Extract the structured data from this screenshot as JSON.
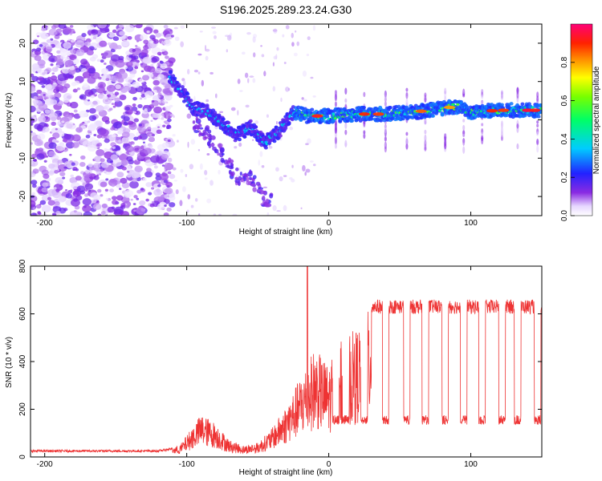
{
  "title": "S196.2025.289.23.24.G30",
  "chart_data": [
    {
      "type": "heatmap",
      "xlabel": "Height of straight line (km)",
      "ylabel": "Frequency (Hz)",
      "xlim": [
        -210,
        150
      ],
      "ylim": [
        -25,
        25
      ],
      "xticks": [
        -200,
        -100,
        0,
        100
      ],
      "yticks": [
        -20,
        -10,
        0,
        10,
        20
      ],
      "colorbar": {
        "label": "Normalized spectral amplitude",
        "range": [
          0,
          1
        ],
        "ticks": [
          "0.0",
          "0.2",
          "0.4",
          "0.6",
          "0.8"
        ]
      },
      "ridge": {
        "description_points_x": [
          -105,
          -95,
          -85,
          -75,
          -65,
          -55,
          -45,
          -35,
          -25,
          -15,
          0,
          20,
          40,
          60,
          80,
          90,
          100,
          120,
          150
        ],
        "description_points_f": [
          8,
          3,
          2,
          -1,
          -4,
          -2,
          -6,
          -3,
          2,
          1,
          1,
          1.5,
          1.5,
          2,
          3,
          3.5,
          2,
          2.5,
          2.5
        ]
      }
    },
    {
      "type": "line",
      "xlabel": "Height of straight line (km)",
      "ylabel": "SNR (10 * v/v)",
      "xlim": [
        -210,
        150
      ],
      "ylim": [
        0,
        800
      ],
      "xticks": [
        -200,
        -100,
        0,
        100
      ],
      "yticks": [
        0,
        200,
        400,
        600,
        800
      ],
      "color": "#ee3333",
      "envelope_x": [
        -210,
        -120,
        -105,
        -90,
        -80,
        -70,
        -60,
        -50,
        -40,
        -30,
        -20,
        -10,
        0,
        10,
        20,
        30,
        40,
        150
      ],
      "envelope_y": [
        25,
        25,
        40,
        150,
        120,
        60,
        40,
        50,
        100,
        180,
        280,
        380,
        320,
        420,
        450,
        530,
        630,
        630
      ],
      "spike": {
        "x": -15,
        "y": 800
      },
      "dips_x": [
        5,
        12,
        25,
        40,
        55,
        68,
        82,
        95,
        108,
        122,
        133,
        147
      ],
      "dip_level": 150
    }
  ]
}
